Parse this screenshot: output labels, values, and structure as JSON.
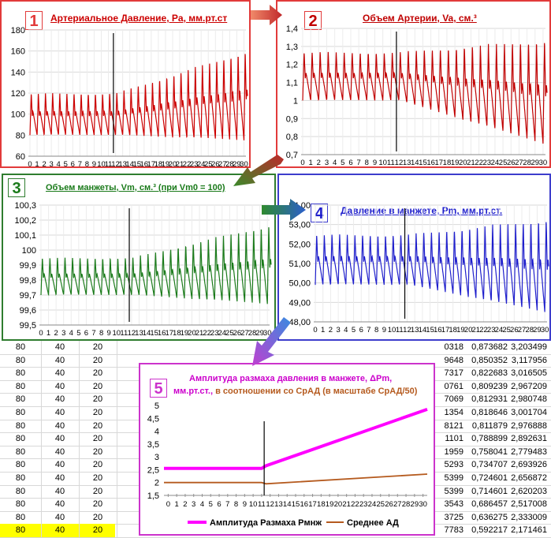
{
  "colors": {
    "c1": "#cc0000",
    "c2": "#c00000",
    "c3": "#1a7a1a",
    "c4": "#1f1fcc",
    "c5pink": "#ff00ff",
    "c5brown": "#b55a1e",
    "border1": "#e23b3b",
    "border3": "#2f7d2f",
    "border4": "#3d3dcc",
    "border5": "#cc33cc",
    "yellow": "#ffff00"
  },
  "panels": [
    {
      "num": "1",
      "title": "Артериальное Давление, Pa, мм.рт.ст",
      "chart_data": {
        "type": "line",
        "ylim": [
          60,
          180
        ],
        "yticks": [
          "180",
          "160",
          "140",
          "120",
          "100",
          "80",
          "60"
        ],
        "base": 95,
        "amp_start": 25,
        "amp_end": 70,
        "kind": "pressure",
        "cycles": 30,
        "change_at": 12
      }
    },
    {
      "num": "2",
      "title": "Объем Артерии, Va, см.³",
      "chart_data": {
        "type": "line",
        "ylim": [
          0.7,
          1.4
        ],
        "yticks": [
          "1,4",
          "1,3",
          "1,2",
          "1,1",
          "1",
          "0,9",
          "0,8",
          "0,7"
        ],
        "kind": "volume",
        "cycles": 30,
        "change_at": 12
      }
    },
    {
      "num": "3",
      "title": "Объем манжеты, Vm, см.³ (при Vm0 = 100)",
      "chart_data": {
        "type": "line",
        "ylim": [
          99.5,
          100.3
        ],
        "yticks": [
          "100,3",
          "100,2",
          "100,1",
          "100",
          "99,9",
          "99,8",
          "99,7",
          "99,6",
          "99,5"
        ],
        "kind": "cuffvol",
        "cycles": 30,
        "change_at": 12
      }
    },
    {
      "num": "4",
      "title": "Давление в манжете, Pm, мм.рт.ст.",
      "chart_data": {
        "type": "line",
        "ylim": [
          48,
          54
        ],
        "yticks": [
          "54,00",
          "53,00",
          "52,00",
          "51,00",
          "50,00",
          "49,00",
          "48,00"
        ],
        "kind": "cuffpress",
        "cycles": 30,
        "change_at": 12
      }
    },
    {
      "num": "5",
      "title_line1": "Амплитуда размаха давления в манжете, ΔPm,",
      "title_line2a": "мм.рт.ст.,",
      "title_line2b": " в соотношении со СрАД (в масштабе СрАД/50)",
      "chart_data": {
        "type": "line",
        "ylim": [
          1.5,
          5
        ],
        "yticks": [
          "5",
          "4,5",
          "4",
          "3,5",
          "3",
          "2,5",
          "2",
          "1,5"
        ],
        "series": [
          {
            "name": "Амплитуда Размаха Рмнж",
            "x": [
              0,
              11.5,
              12,
              31
            ],
            "values": [
              2.55,
              2.55,
              2.65,
              4.85
            ]
          },
          {
            "name": "Среднее АД",
            "x": [
              0,
              11.5,
              12,
              31
            ],
            "values": [
              2.0,
              2.0,
              1.95,
              2.33
            ]
          }
        ]
      }
    }
  ],
  "xticks": [
    "0",
    "1",
    "2",
    "3",
    "4",
    "5",
    "6",
    "7",
    "8",
    "9",
    "10",
    "11",
    "12",
    "13",
    "14",
    "15",
    "16",
    "17",
    "18",
    "19",
    "20",
    "21",
    "22",
    "23",
    "24",
    "25",
    "26",
    "27",
    "28",
    "29",
    "30"
  ],
  "bg_rows": [
    {
      "a": "80",
      "b": "40",
      "c": "20",
      "d": "0318",
      "e": "0,873682",
      "f": "3,203499"
    },
    {
      "a": "80",
      "b": "40",
      "c": "20",
      "d": "9648",
      "e": "0,850352",
      "f": "3,117956"
    },
    {
      "a": "80",
      "b": "40",
      "c": "20",
      "d": "7317",
      "e": "0,822683",
      "f": "3,016505"
    },
    {
      "a": "80",
      "b": "40",
      "c": "20",
      "d": "0761",
      "e": "0,809239",
      "f": "2,967209"
    },
    {
      "a": "80",
      "b": "40",
      "c": "20",
      "d": "7069",
      "e": "0,812931",
      "f": "2,980748"
    },
    {
      "a": "80",
      "b": "40",
      "c": "20",
      "d": "1354",
      "e": "0,818646",
      "f": "3,001704"
    },
    {
      "a": "80",
      "b": "40",
      "c": "20",
      "d": "8121",
      "e": "0,811879",
      "f": "2,976888"
    },
    {
      "a": "80",
      "b": "40",
      "c": "20",
      "d": "1101",
      "e": "0,788899",
      "f": "2,892631"
    },
    {
      "a": "80",
      "b": "40",
      "c": "20",
      "d": "1959",
      "e": "0,758041",
      "f": "2,779483"
    },
    {
      "a": "80",
      "b": "40",
      "c": "20",
      "d": "5293",
      "e": "0,734707",
      "f": "2,693926"
    },
    {
      "a": "80",
      "b": "40",
      "c": "20",
      "d": "5399",
      "e": "0,724601",
      "f": "2,656872"
    },
    {
      "a": "80",
      "b": "40",
      "c": "20",
      "d": "5399",
      "e": "0,714601",
      "f": "2,620203"
    },
    {
      "a": "80",
      "b": "40",
      "c": "20",
      "d": "3543",
      "e": "0,686457",
      "f": "2,517008"
    },
    {
      "a": "80",
      "b": "40",
      "c": "20",
      "d": "3725",
      "e": "0,636275",
      "f": "2,333009"
    },
    {
      "a": "80",
      "b": "40",
      "c": "20",
      "d": "7783",
      "e": "0,592217",
      "f": "2,171461"
    }
  ]
}
